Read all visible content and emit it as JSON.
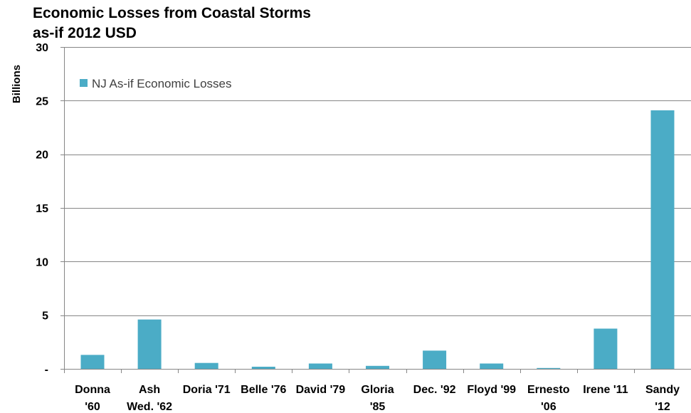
{
  "chart_data": {
    "type": "bar",
    "title_line1": "Economic Losses from Coastal Storms",
    "title_line2": "as-if 2012 USD",
    "ylabel": "Billions",
    "xlabel": "",
    "ylim": [
      0,
      30
    ],
    "yticks": [
      {
        "value": 0,
        "label": "-"
      },
      {
        "value": 5,
        "label": "5"
      },
      {
        "value": 10,
        "label": "10"
      },
      {
        "value": 15,
        "label": "15"
      },
      {
        "value": 20,
        "label": "20"
      },
      {
        "value": 25,
        "label": "25"
      },
      {
        "value": 30,
        "label": "30"
      }
    ],
    "grid": true,
    "legend_position": "top-left",
    "categories": [
      [
        "Donna",
        "'60"
      ],
      [
        "Ash",
        "Wed. '62"
      ],
      [
        "Doria '71"
      ],
      [
        "Belle '76"
      ],
      [
        "David '79"
      ],
      [
        "Gloria",
        "'85"
      ],
      [
        "Dec. '92"
      ],
      [
        "Floyd '99"
      ],
      [
        "Ernesto",
        "'06"
      ],
      [
        "Irene '11"
      ],
      [
        "Sandy",
        "'12"
      ]
    ],
    "series": [
      {
        "name": "NJ As-if Economic Losses",
        "color": "#4bacc6",
        "values": [
          1.3,
          4.6,
          0.55,
          0.2,
          0.5,
          0.28,
          1.7,
          0.5,
          0.08,
          3.75,
          24.1
        ]
      }
    ]
  }
}
